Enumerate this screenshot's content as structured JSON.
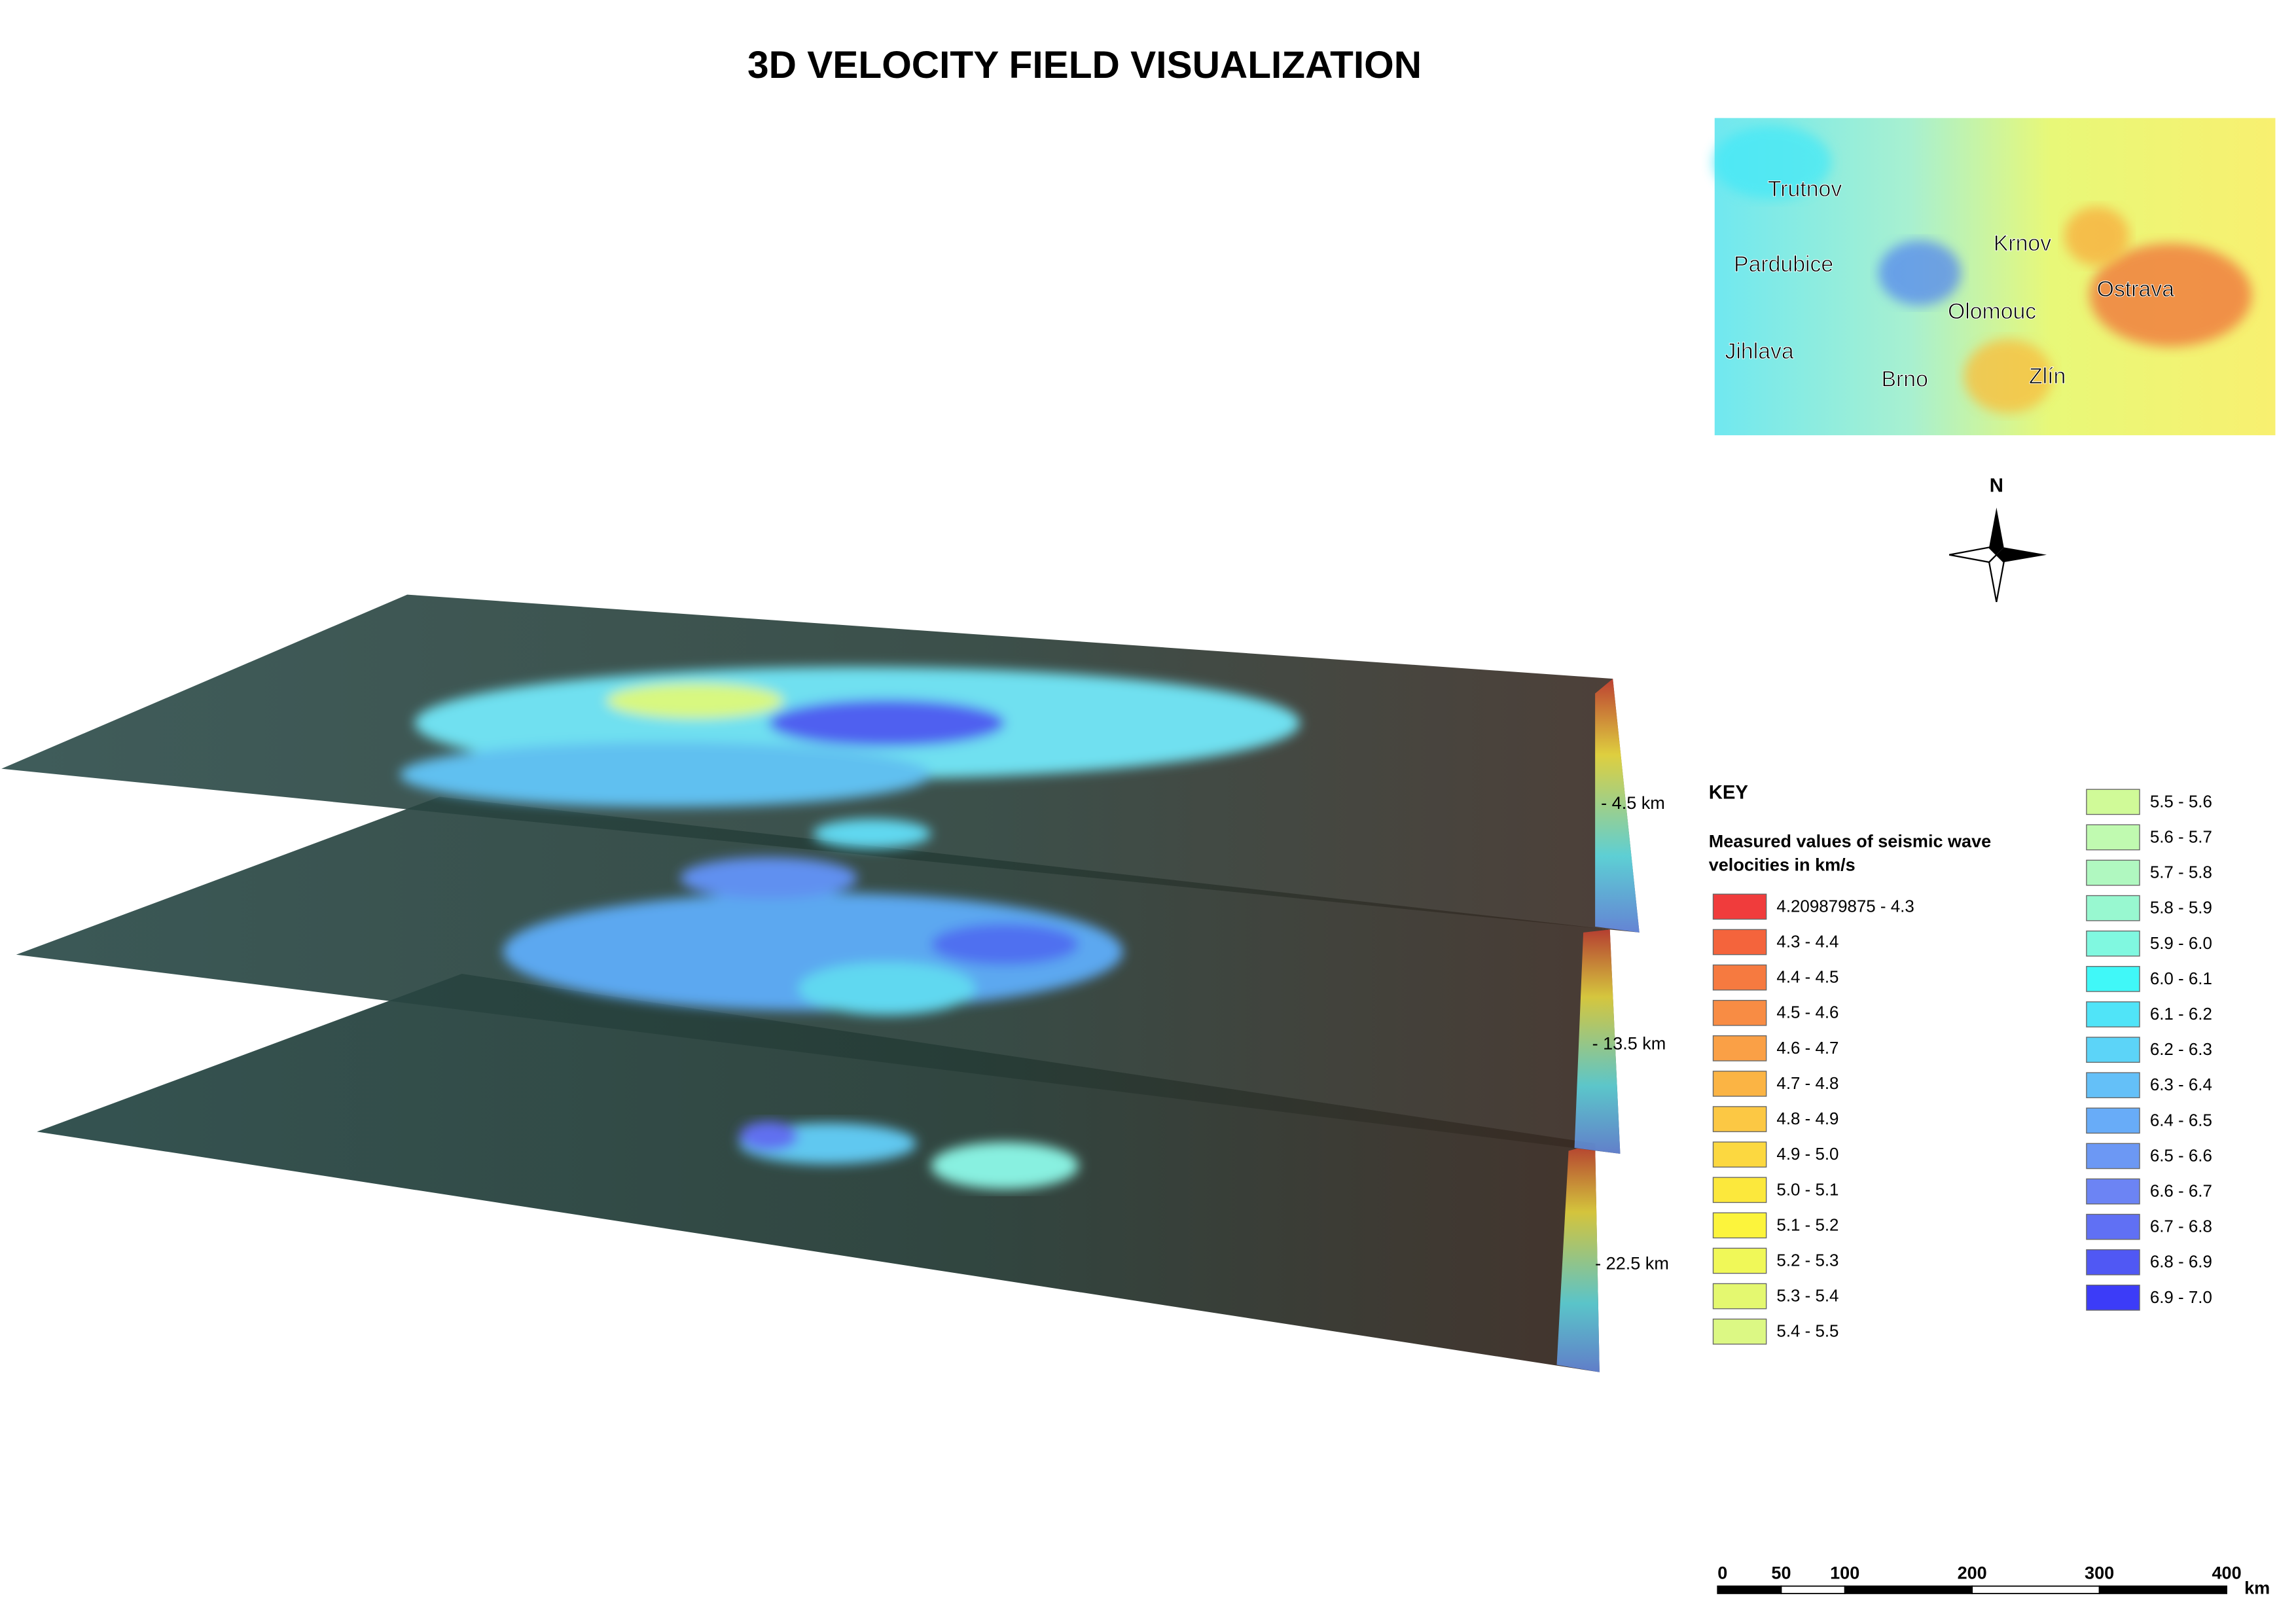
{
  "title": "3D VELOCITY FIELD VISUALIZATION",
  "inset_map": {
    "cities": [
      "Trutnov",
      "Pardubice",
      "Krnov",
      "Ostrava",
      "Olomouc",
      "Jihlava",
      "Brno",
      "Zlín"
    ]
  },
  "compass": {
    "north": "N"
  },
  "layers": [
    {
      "depth_label": "- 4.5 km"
    },
    {
      "depth_label": "- 13.5 km"
    },
    {
      "depth_label": "- 22.5 km"
    }
  ],
  "key": {
    "title": "KEY",
    "subtitle_lines": [
      "Measured values of seismic wave",
      "velocities in km/s"
    ],
    "classes": [
      {
        "label": "4.209879875 - 4.3",
        "color": "#f03c3c"
      },
      {
        "label": "4.3 - 4.4",
        "color": "#f4643c"
      },
      {
        "label": "4.4 - 4.5",
        "color": "#f67a40"
      },
      {
        "label": "4.5 - 4.6",
        "color": "#f88c44"
      },
      {
        "label": "4.6 - 4.7",
        "color": "#faa046"
      },
      {
        "label": "4.7 - 4.8",
        "color": "#fbb444"
      },
      {
        "label": "4.8 - 4.9",
        "color": "#fcc844"
      },
      {
        "label": "4.9 - 5.0",
        "color": "#fcd840"
      },
      {
        "label": "5.0 - 5.1",
        "color": "#fce83c"
      },
      {
        "label": "5.1 - 5.2",
        "color": "#fcf43c"
      },
      {
        "label": "5.2 - 5.3",
        "color": "#f0f858"
      },
      {
        "label": "5.3 - 5.4",
        "color": "#e4f870"
      },
      {
        "label": "5.4 - 5.5",
        "color": "#dcf884"
      },
      {
        "label": "5.5 - 5.6",
        "color": "#d0fa98"
      },
      {
        "label": "5.6 - 5.7",
        "color": "#c0fab0"
      },
      {
        "label": "5.7 - 5.8",
        "color": "#b0f8c0"
      },
      {
        "label": "5.8 - 5.9",
        "color": "#98f8d0"
      },
      {
        "label": "5.9 - 6.0",
        "color": "#80f8e0"
      },
      {
        "label": "6.0 - 6.1",
        "color": "#40f8f8"
      },
      {
        "label": "6.1 - 6.2",
        "color": "#50e4f8"
      },
      {
        "label": "6.2 - 6.3",
        "color": "#5cd4f8"
      },
      {
        "label": "6.3 - 6.4",
        "color": "#64c0f8"
      },
      {
        "label": "6.4 - 6.5",
        "color": "#68acf8"
      },
      {
        "label": "6.5 - 6.6",
        "color": "#6c98f4"
      },
      {
        "label": "6.6 - 6.7",
        "color": "#6c84f4"
      },
      {
        "label": "6.7 - 6.8",
        "color": "#6070f4"
      },
      {
        "label": "6.8 - 6.9",
        "color": "#5058f4"
      },
      {
        "label": "6.9 - 7.0",
        "color": "#3c3cf8"
      }
    ]
  },
  "scale_bar": {
    "ticks": [
      0,
      50,
      100,
      200,
      300,
      400
    ],
    "unit": "km"
  }
}
